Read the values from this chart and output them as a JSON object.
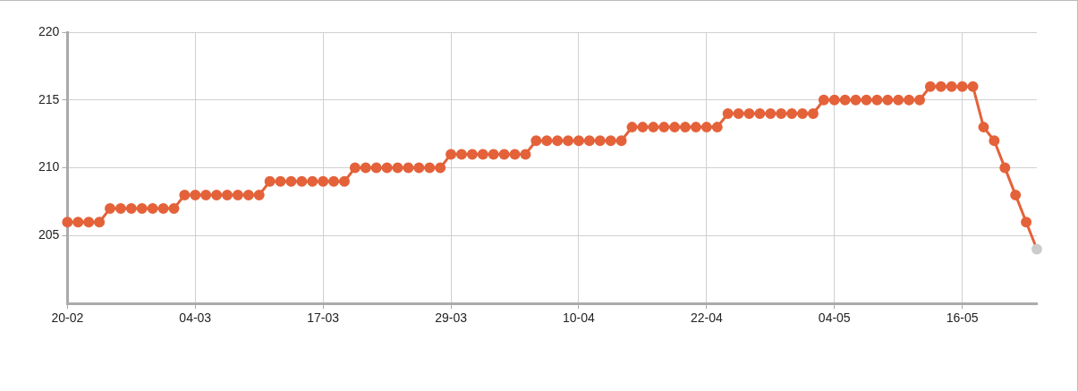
{
  "chart_data": {
    "type": "line",
    "categories": [
      "20-02",
      null,
      null,
      null,
      null,
      null,
      null,
      null,
      null,
      null,
      null,
      null,
      "04-03",
      null,
      null,
      null,
      null,
      null,
      null,
      null,
      null,
      null,
      null,
      null,
      "17-03",
      null,
      null,
      null,
      null,
      null,
      null,
      null,
      null,
      null,
      null,
      null,
      "29-03",
      null,
      null,
      null,
      null,
      null,
      null,
      null,
      null,
      null,
      null,
      null,
      "10-04",
      null,
      null,
      null,
      null,
      null,
      null,
      null,
      null,
      null,
      null,
      null,
      "22-04",
      null,
      null,
      null,
      null,
      null,
      null,
      null,
      null,
      null,
      null,
      null,
      "04-05",
      null,
      null,
      null,
      null,
      null,
      null,
      null,
      null,
      null,
      null,
      null,
      "16-05",
      null,
      null,
      null,
      null,
      null,
      null,
      null
    ],
    "series": [
      {
        "color": "#e4623a",
        "values": [
          206,
          206,
          206,
          206,
          207,
          207,
          207,
          207,
          207,
          207,
          207,
          208,
          208,
          208,
          208,
          208,
          208,
          208,
          208,
          209,
          209,
          209,
          209,
          209,
          209,
          209,
          209,
          210,
          210,
          210,
          210,
          210,
          210,
          210,
          210,
          210,
          211,
          211,
          211,
          211,
          211,
          211,
          211,
          211,
          212,
          212,
          212,
          212,
          212,
          212,
          212,
          212,
          212,
          213,
          213,
          213,
          213,
          213,
          213,
          213,
          213,
          213,
          214,
          214,
          214,
          214,
          214,
          214,
          214,
          214,
          214,
          215,
          215,
          215,
          215,
          215,
          215,
          215,
          215,
          215,
          215,
          216,
          216,
          216,
          216,
          216,
          213,
          212,
          210,
          208,
          206,
          204
        ],
        "colors": [
          "#e4623a",
          "#e4623a",
          "#e4623a",
          "#e4623a",
          "#e4623a",
          "#e4623a",
          "#e4623a",
          "#e4623a",
          "#e4623a",
          "#e4623a",
          "#e4623a",
          "#e4623a",
          "#e4623a",
          "#e4623a",
          "#e4623a",
          "#e4623a",
          "#e4623a",
          "#e4623a",
          "#e4623a",
          "#e4623a",
          "#e4623a",
          "#e4623a",
          "#e4623a",
          "#e4623a",
          "#e4623a",
          "#e4623a",
          "#e4623a",
          "#e4623a",
          "#e4623a",
          "#e4623a",
          "#e4623a",
          "#e4623a",
          "#e4623a",
          "#e4623a",
          "#e4623a",
          "#e4623a",
          "#e4623a",
          "#e4623a",
          "#e4623a",
          "#e4623a",
          "#e4623a",
          "#e4623a",
          "#e4623a",
          "#e4623a",
          "#e4623a",
          "#e4623a",
          "#e4623a",
          "#e4623a",
          "#e4623a",
          "#e4623a",
          "#e4623a",
          "#e4623a",
          "#e4623a",
          "#e4623a",
          "#e4623a",
          "#e4623a",
          "#e4623a",
          "#e4623a",
          "#e4623a",
          "#e4623a",
          "#e4623a",
          "#e4623a",
          "#e4623a",
          "#e4623a",
          "#e4623a",
          "#e4623a",
          "#e4623a",
          "#e4623a",
          "#e4623a",
          "#e4623a",
          "#e4623a",
          "#e4623a",
          "#e4623a",
          "#e4623a",
          "#e4623a",
          "#e4623a",
          "#e4623a",
          "#e4623a",
          "#e4623a",
          "#e4623a",
          "#e4623a",
          "#e4623a",
          "#e4623a",
          "#e4623a",
          "#e4623a",
          "#e4623a",
          "#e4623a",
          "#e4623a",
          "#e4623a",
          "#e4623a",
          "#e4623a",
          "#cccccc"
        ]
      }
    ],
    "ylim": [
      200,
      220
    ],
    "yticks": [
      205,
      210,
      215,
      220
    ],
    "grid": true,
    "legend": false,
    "marker": "circle"
  }
}
